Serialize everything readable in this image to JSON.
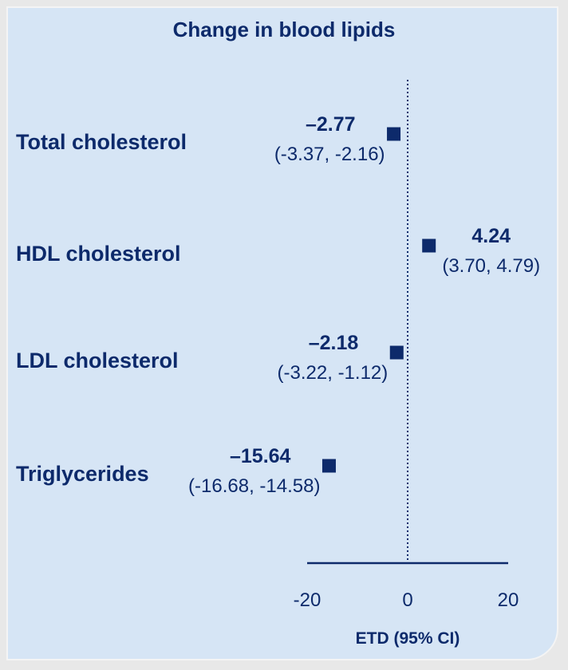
{
  "chart_data": {
    "type": "forest",
    "title": "Change in blood lipids",
    "xlabel": "ETD (95% CI)",
    "xlim": [
      -20,
      20
    ],
    "xticks": [
      "-20",
      "0",
      "20"
    ],
    "reference_line": 0,
    "categories": [
      "Total cholesterol",
      "HDL cholesterol",
      "LDL cholesterol",
      "Triglycerides"
    ],
    "estimates": [
      -2.77,
      4.24,
      -2.18,
      -15.64
    ],
    "estimate_labels": [
      "–2.77",
      "4.24",
      "–2.18",
      "–15.64"
    ],
    "ci_labels": [
      "(-3.37, -2.16)",
      "(3.70, 4.79)",
      "(-3.22, -1.12)",
      "(-16.68, -14.58)"
    ],
    "ci": [
      [
        -3.37,
        -2.16
      ],
      [
        3.7,
        4.79
      ],
      [
        -3.22,
        -1.12
      ],
      [
        -16.68,
        -14.58
      ]
    ]
  },
  "colors": {
    "text": "#0d2a6b",
    "marker": "#0d2a6b",
    "background": "#d6e5f5"
  }
}
